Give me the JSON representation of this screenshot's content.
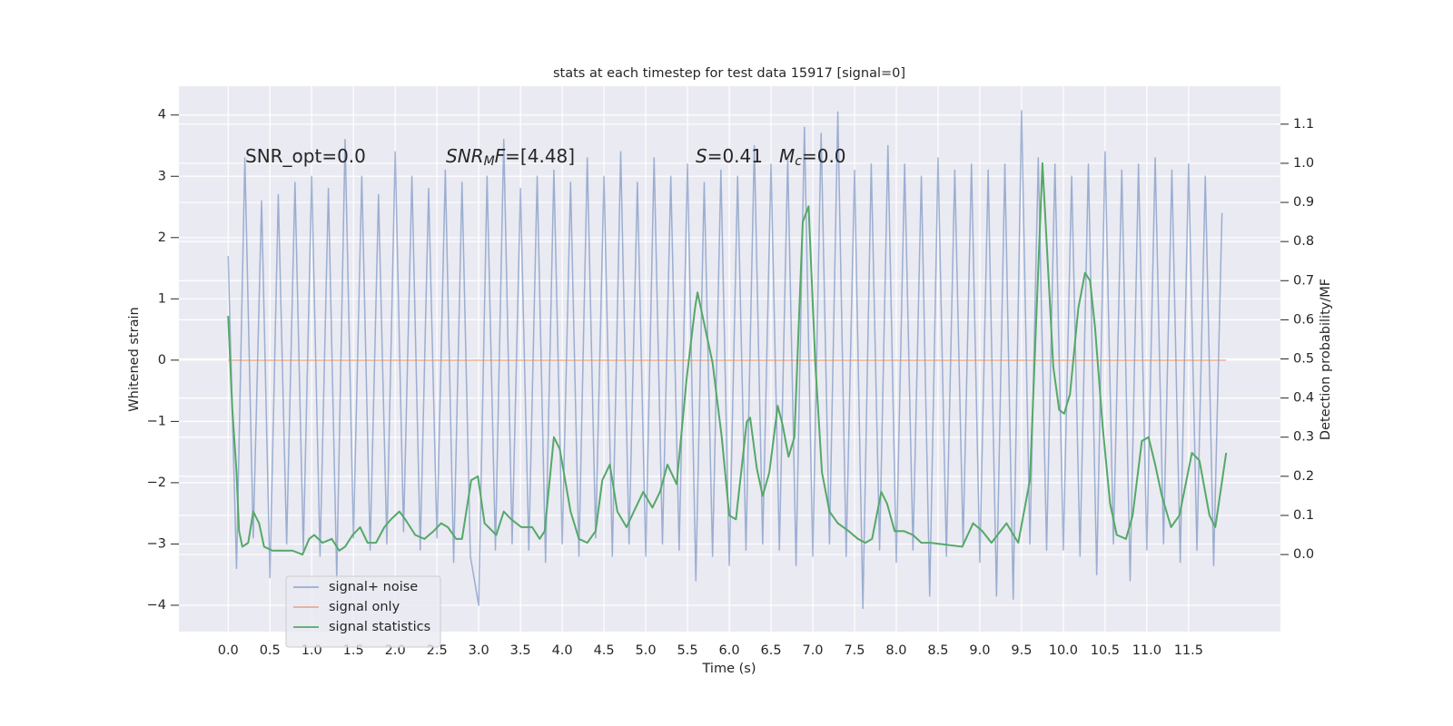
{
  "chart_data": {
    "type": "line",
    "title": "stats at each timestep for test data 15917 [signal=0]",
    "xlabel": "Time (s)",
    "ylabel": "Whitened strain",
    "y2label": "Detection probability/MF",
    "grid": true,
    "legend": "lower left",
    "xlim": [
      -0.59,
      12.6
    ],
    "ylim": [
      -4.43,
      4.47
    ],
    "y2lim": [
      -0.197,
      1.197
    ],
    "xticks": [
      {
        "value": 0,
        "label": "0.0"
      },
      {
        "value": 0.5,
        "label": "0.5"
      },
      {
        "value": 1,
        "label": "1.0"
      },
      {
        "value": 1.5,
        "label": "1.5"
      },
      {
        "value": 2,
        "label": "2.0"
      },
      {
        "value": 2.5,
        "label": "2.5"
      },
      {
        "value": 3,
        "label": "3.0"
      },
      {
        "value": 3.5,
        "label": "3.5"
      },
      {
        "value": 4,
        "label": "4.0"
      },
      {
        "value": 4.5,
        "label": "4.5"
      },
      {
        "value": 5,
        "label": "5.0"
      },
      {
        "value": 5.5,
        "label": "5.5"
      },
      {
        "value": 6,
        "label": "6.0"
      },
      {
        "value": 6.5,
        "label": "6.5"
      },
      {
        "value": 7,
        "label": "7.0"
      },
      {
        "value": 7.5,
        "label": "7.5"
      },
      {
        "value": 8,
        "label": "8.0"
      },
      {
        "value": 8.5,
        "label": "8.5"
      },
      {
        "value": 9,
        "label": "9.0"
      },
      {
        "value": 9.5,
        "label": "9.5"
      },
      {
        "value": 10,
        "label": "10.0"
      },
      {
        "value": 10.5,
        "label": "10.5"
      },
      {
        "value": 11,
        "label": "11.0"
      },
      {
        "value": 11.5,
        "label": "11.5"
      }
    ],
    "yticks": [
      {
        "value": -4,
        "label": "−4"
      },
      {
        "value": -3,
        "label": "−3"
      },
      {
        "value": -2,
        "label": "−2"
      },
      {
        "value": -1,
        "label": "−1"
      },
      0,
      1,
      2,
      3,
      4
    ],
    "y2ticks": [
      {
        "value": 0,
        "label": "0.0"
      },
      {
        "value": 0.1,
        "label": "0.1"
      },
      {
        "value": 0.2,
        "label": "0.2"
      },
      {
        "value": 0.3,
        "label": "0.3"
      },
      {
        "value": 0.4,
        "label": "0.4"
      },
      {
        "value": 0.5,
        "label": "0.5"
      },
      {
        "value": 0.6,
        "label": "0.6"
      },
      {
        "value": 0.7,
        "label": "0.7"
      },
      {
        "value": 0.8,
        "label": "0.8"
      },
      {
        "value": 0.9,
        "label": "0.9"
      },
      {
        "value": 1.0,
        "label": "1.0"
      },
      {
        "value": 1.1,
        "label": "1.1"
      }
    ],
    "annotations": [
      [
        "SNR_opt=0.0"
      ],
      [
        "SNR",
        "M",
        "F",
        "=[4.48]"
      ],
      [
        "S",
        "=0.41"
      ],
      [
        "M",
        "c",
        "=0.0"
      ]
    ],
    "series": [
      {
        "name": "signal+ noise",
        "color": "#4c72b0",
        "opacity": 0.5,
        "x": [
          0,
          0.1,
          0.2,
          0.3,
          0.4,
          0.5,
          0.6,
          0.7,
          0.8,
          0.9,
          1,
          1.1,
          1.2,
          1.3,
          1.4,
          1.5,
          1.6,
          1.7,
          1.8,
          1.9,
          2,
          2.1,
          2.2,
          2.3,
          2.4,
          2.5,
          2.6,
          2.7,
          2.8,
          2.9,
          3,
          3.1,
          3.2,
          3.3,
          3.4,
          3.5,
          3.6,
          3.7,
          3.8,
          3.9,
          4,
          4.1,
          4.2,
          4.3,
          4.4,
          4.5,
          4.6,
          4.7,
          4.8,
          4.9,
          5,
          5.1,
          5.2,
          5.3,
          5.4,
          5.5,
          5.6,
          5.7,
          5.8,
          5.9,
          6,
          6.1,
          6.2,
          6.3,
          6.4,
          6.5,
          6.6,
          6.7,
          6.8,
          6.9,
          7,
          7.1,
          7.2,
          7.3,
          7.4,
          7.5,
          7.6,
          7.7,
          7.8,
          7.9,
          8,
          8.1,
          8.2,
          8.3,
          8.4,
          8.5,
          8.6,
          8.7,
          8.8,
          8.9,
          9,
          9.1,
          9.2,
          9.3,
          9.4,
          9.5,
          9.6,
          9.7,
          9.8,
          9.9,
          10,
          10.1,
          10.2,
          10.3,
          10.4,
          10.5,
          10.6,
          10.7,
          10.8,
          10.9,
          11,
          11.1,
          11.2,
          11.3,
          11.4,
          11.5,
          11.6,
          11.7,
          11.8,
          11.9
        ],
        "values": [
          1.7,
          -3.4,
          3.3,
          -2.9,
          2.6,
          -3.55,
          2.7,
          -3.0,
          2.9,
          -3.1,
          3.0,
          -3.2,
          2.8,
          -3.55,
          3.6,
          -2.9,
          3.0,
          -3.1,
          2.7,
          -3.0,
          3.4,
          -2.8,
          3.0,
          -3.1,
          2.8,
          -2.9,
          3.1,
          -3.3,
          2.9,
          -3.2,
          -4.0,
          3.0,
          -3.1,
          3.6,
          -3.0,
          2.8,
          -3.1,
          3.0,
          -3.3,
          3.1,
          -3.0,
          2.9,
          -3.2,
          3.3,
          -2.9,
          3.0,
          -3.2,
          3.4,
          -3.0,
          2.9,
          -3.2,
          3.3,
          -3.0,
          3.0,
          -3.1,
          3.2,
          -3.6,
          2.9,
          -3.2,
          3.1,
          -3.35,
          3.0,
          -3.1,
          3.5,
          -3.0,
          3.2,
          -3.1,
          3.3,
          -3.35,
          3.8,
          -3.2,
          3.7,
          -3.0,
          4.05,
          -3.2,
          3.1,
          -4.05,
          3.2,
          -3.1,
          3.5,
          -3.3,
          3.2,
          -3.1,
          3.0,
          -3.85,
          3.3,
          -3.2,
          3.1,
          -3.0,
          3.2,
          -3.3,
          3.1,
          -3.85,
          3.2,
          -3.9,
          4.07,
          -3.0,
          3.3,
          -3.1,
          3.2,
          -3.1,
          3.0,
          -3.2,
          3.2,
          -3.5,
          3.4,
          -3.0,
          3.1,
          -3.6,
          3.2,
          -3.1,
          3.3,
          -3.0,
          3.1,
          -3.3,
          3.2,
          -3.1,
          3.0,
          -3.35,
          2.4
        ]
      },
      {
        "name": "signal only",
        "color": "#dd8452",
        "opacity": 0.6,
        "x": [
          0,
          11.95
        ],
        "values": [
          0,
          0
        ]
      },
      {
        "name": "signal statistics",
        "color": "#55a868",
        "opacity": 1,
        "axis": "y2",
        "x": [
          0,
          0.05,
          0.1,
          0.13,
          0.17,
          0.24,
          0.3,
          0.37,
          0.43,
          0.53,
          0.64,
          0.77,
          0.89,
          0.97,
          1.03,
          1.13,
          1.24,
          1.33,
          1.4,
          1.49,
          1.58,
          1.67,
          1.77,
          1.87,
          1.95,
          2.05,
          2.12,
          2.24,
          2.35,
          2.46,
          2.55,
          2.63,
          2.73,
          2.8,
          2.91,
          2.99,
          3.07,
          3.21,
          3.3,
          3.39,
          3.51,
          3.64,
          3.73,
          3.79,
          3.9,
          3.97,
          4.1,
          4.2,
          4.3,
          4.4,
          4.48,
          4.57,
          4.66,
          4.77,
          4.88,
          4.97,
          5.08,
          5.17,
          5.26,
          5.37,
          5.49,
          5.59,
          5.62,
          5.8,
          5.91,
          6,
          6.08,
          6.21,
          6.25,
          6.33,
          6.4,
          6.48,
          6.58,
          6.64,
          6.71,
          6.78,
          6.88,
          6.95,
          7.03,
          7.11,
          7.2,
          7.3,
          7.43,
          7.54,
          7.63,
          7.71,
          7.82,
          7.89,
          7.98,
          8.09,
          8.2,
          8.3,
          8.41,
          8.79,
          8.92,
          9.03,
          9.14,
          9.32,
          9.46,
          9.6,
          9.75,
          9.88,
          9.95,
          10.01,
          10.08,
          10.18,
          10.26,
          10.32,
          10.38,
          10.47,
          10.56,
          10.64,
          10.75,
          10.83,
          10.94,
          11.02,
          11.1,
          11.18,
          11.29,
          11.39,
          11.54,
          11.63,
          11.75,
          11.82,
          11.95
        ],
        "values": [
          0.61,
          0.37,
          0.21,
          0.06,
          0.02,
          0.03,
          0.11,
          0.08,
          0.02,
          0.01,
          0.01,
          0.01,
          0,
          0.04,
          0.05,
          0.03,
          0.04,
          0.01,
          0.02,
          0.05,
          0.07,
          0.03,
          0.03,
          0.07,
          0.09,
          0.11,
          0.09,
          0.05,
          0.04,
          0.06,
          0.08,
          0.07,
          0.04,
          0.04,
          0.19,
          0.2,
          0.08,
          0.05,
          0.11,
          0.09,
          0.07,
          0.07,
          0.04,
          0.06,
          0.3,
          0.27,
          0.11,
          0.04,
          0.03,
          0.06,
          0.19,
          0.23,
          0.11,
          0.07,
          0.12,
          0.16,
          0.12,
          0.16,
          0.23,
          0.18,
          0.45,
          0.63,
          0.67,
          0.49,
          0.3,
          0.1,
          0.09,
          0.34,
          0.35,
          0.22,
          0.15,
          0.21,
          0.38,
          0.33,
          0.25,
          0.3,
          0.85,
          0.89,
          0.49,
          0.21,
          0.11,
          0.08,
          0.06,
          0.04,
          0.03,
          0.04,
          0.16,
          0.13,
          0.06,
          0.06,
          0.05,
          0.03,
          0.03,
          0.02,
          0.08,
          0.06,
          0.03,
          0.08,
          0.03,
          0.19,
          1.0,
          0.48,
          0.37,
          0.36,
          0.41,
          0.63,
          0.72,
          0.7,
          0.58,
          0.33,
          0.13,
          0.05,
          0.04,
          0.1,
          0.29,
          0.3,
          0.23,
          0.15,
          0.07,
          0.1,
          0.26,
          0.24,
          0.1,
          0.07,
          0.26
        ]
      }
    ]
  }
}
